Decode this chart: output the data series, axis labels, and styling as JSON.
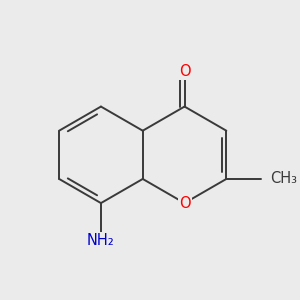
{
  "bg_color": "#ebebeb",
  "bond_color": "#3a3a3a",
  "bond_width": 1.4,
  "atom_colors": {
    "O": "#ff0000",
    "N": "#0000cc",
    "C": "#3a3a3a"
  },
  "font_size": 10.5,
  "fig_size": [
    3.0,
    3.0
  ],
  "dpi": 100,
  "xlim": [
    -2.8,
    2.8
  ],
  "ylim": [
    -2.5,
    2.8
  ]
}
